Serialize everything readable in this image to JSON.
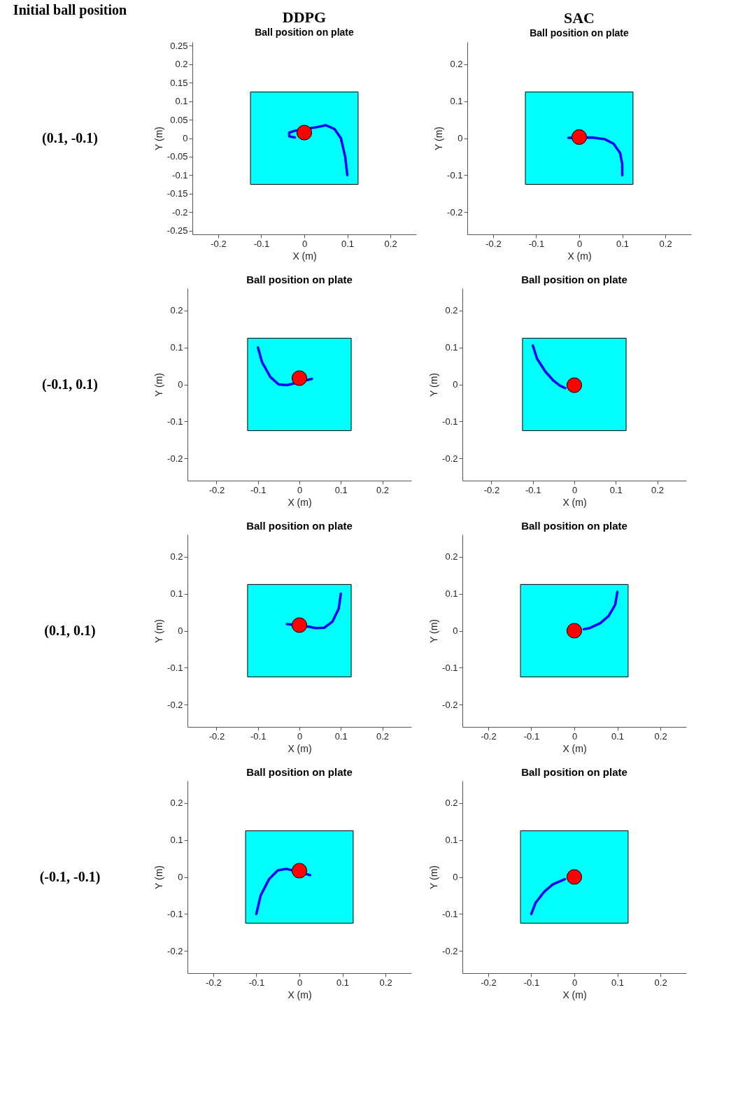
{
  "chart_data": [
    {
      "type": "other",
      "title": "Initial ball position"
    },
    {
      "type": "other",
      "title": "(0.1, -0.1)"
    },
    {
      "type": "line",
      "title": "DDPG",
      "subtitle": "Ball position on plate",
      "xlabel": "X (m)",
      "ylabel": "Y (m)",
      "xlim": [
        -0.26,
        0.26
      ],
      "ylim": [
        -0.26,
        0.26
      ],
      "xticks": [
        -0.2,
        -0.1,
        0,
        0.1,
        0.2
      ],
      "yticks": [
        -0.25,
        -0.2,
        -0.15,
        -0.1,
        -0.05,
        0,
        0.05,
        0.1,
        0.15,
        0.2,
        0.25
      ],
      "series": [
        {
          "type": "line",
          "color": "#0000ff",
          "x": [
            0.1,
            0.095,
            0.085,
            0.07,
            0.05,
            0.03,
            -0.022,
            -0.035,
            -0.035,
            -0.022
          ],
          "values": [
            -0.1,
            -0.05,
            0,
            0.025,
            0.035,
            0.03,
            0.02,
            0.015,
            0.005,
            0.002
          ]
        },
        {
          "type": "scatter",
          "color": "#ff0000",
          "marker": "circle",
          "x": [
            0
          ],
          "values": [
            0.015
          ]
        }
      ]
    },
    {
      "type": "line",
      "title": "SAC",
      "subtitle": "Ball position on plate",
      "xlabel": "X (m)",
      "ylabel": "Y (m)",
      "xlim": [
        -0.26,
        0.26
      ],
      "ylim": [
        -0.26,
        0.26
      ],
      "xticks": [
        -0.2,
        -0.1,
        0,
        0.1,
        0.2
      ],
      "yticks": [
        -0.2,
        -0.1,
        0,
        0.1,
        0.2
      ],
      "series": [
        {
          "type": "line",
          "color": "#0000ff",
          "x": [
            0.1,
            0.1,
            0.095,
            0.08,
            0.06,
            0.03,
            -0.025
          ],
          "values": [
            -0.1,
            -0.07,
            -0.04,
            -0.015,
            -0.003,
            0.002,
            0.001
          ]
        },
        {
          "type": "scatter",
          "color": "#ff0000",
          "marker": "circle",
          "x": [
            0
          ],
          "values": [
            0.003
          ]
        }
      ]
    },
    {
      "type": "other",
      "title": "(-0.1, 0.1)"
    },
    {
      "type": "line",
      "title": "Ball position on plate",
      "xlabel": "X (m)",
      "ylabel": "Y (m)",
      "xlim": [
        -0.27,
        0.27
      ],
      "ylim": [
        -0.26,
        0.26
      ],
      "xticks": [
        -0.2,
        -0.1,
        0,
        0.1,
        0.2
      ],
      "yticks": [
        -0.2,
        -0.1,
        0,
        0.1,
        0.2
      ],
      "series": [
        {
          "type": "line",
          "color": "#0000ff",
          "x": [
            -0.1,
            -0.09,
            -0.07,
            -0.05,
            -0.03,
            0.03
          ],
          "values": [
            0.1,
            0.06,
            0.02,
            0,
            -0.002,
            0.015
          ]
        },
        {
          "type": "scatter",
          "color": "#ff0000",
          "marker": "circle",
          "x": [
            0
          ],
          "values": [
            0.017
          ]
        }
      ]
    },
    {
      "type": "line",
      "title": "Ball position on plate",
      "xlabel": "X (m)",
      "ylabel": "Y (m)",
      "xlim": [
        -0.27,
        0.27
      ],
      "ylim": [
        -0.26,
        0.26
      ],
      "xticks": [
        -0.2,
        -0.1,
        0,
        0.1,
        0.2
      ],
      "yticks": [
        -0.2,
        -0.1,
        0,
        0.1,
        0.2
      ],
      "series": [
        {
          "type": "line",
          "color": "#0000ff",
          "x": [
            -0.1,
            -0.09,
            -0.07,
            -0.05,
            -0.035,
            -0.022
          ],
          "values": [
            0.105,
            0.07,
            0.035,
            0.01,
            -0.003,
            -0.01
          ]
        },
        {
          "type": "scatter",
          "color": "#ff0000",
          "marker": "circle",
          "x": [
            0
          ],
          "values": [
            -0.002
          ]
        }
      ]
    },
    {
      "type": "other",
      "title": "(0.1, 0.1)"
    },
    {
      "type": "line",
      "title": "Ball position on plate",
      "xlabel": "X (m)",
      "ylabel": "Y (m)",
      "xlim": [
        -0.27,
        0.27
      ],
      "ylim": [
        -0.26,
        0.26
      ],
      "xticks": [
        -0.2,
        -0.1,
        0,
        0.1,
        0.2
      ],
      "yticks": [
        -0.2,
        -0.1,
        0,
        0.1,
        0.2
      ],
      "series": [
        {
          "type": "line",
          "color": "#0000ff",
          "x": [
            0.1,
            0.095,
            0.08,
            0.06,
            0.04,
            0.022,
            -0.03
          ],
          "values": [
            0.1,
            0.06,
            0.025,
            0.008,
            0.007,
            0.011,
            0.018
          ]
        },
        {
          "type": "scatter",
          "color": "#ff0000",
          "marker": "circle",
          "x": [
            0
          ],
          "values": [
            0.015
          ]
        }
      ]
    },
    {
      "type": "line",
      "title": "Ball position on plate",
      "xlabel": "X (m)",
      "ylabel": "Y (m)",
      "xlim": [
        -0.26,
        0.26
      ],
      "ylim": [
        -0.26,
        0.26
      ],
      "xticks": [
        -0.2,
        -0.1,
        0,
        0.1,
        0.2
      ],
      "yticks": [
        -0.2,
        -0.1,
        0,
        0.1,
        0.2
      ],
      "series": [
        {
          "type": "line",
          "color": "#0000ff",
          "x": [
            0.1,
            0.095,
            0.08,
            0.06,
            0.035,
            0.022
          ],
          "values": [
            0.105,
            0.07,
            0.04,
            0.02,
            0.007,
            0.004
          ]
        },
        {
          "type": "scatter",
          "color": "#ff0000",
          "marker": "circle",
          "x": [
            0
          ],
          "values": [
            0
          ]
        }
      ]
    },
    {
      "type": "other",
      "title": "(-0.1, -0.1)"
    },
    {
      "type": "line",
      "title": "Ball position on plate",
      "xlabel": "X (m)",
      "ylabel": "Y (m)",
      "xlim": [
        -0.26,
        0.26
      ],
      "ylim": [
        -0.26,
        0.26
      ],
      "xticks": [
        -0.2,
        -0.1,
        0,
        0.1,
        0.2
      ],
      "yticks": [
        -0.2,
        -0.1,
        0,
        0.1,
        0.2
      ],
      "series": [
        {
          "type": "line",
          "color": "#0000ff",
          "x": [
            -0.1,
            -0.09,
            -0.07,
            -0.05,
            -0.03,
            0.025
          ],
          "values": [
            -0.1,
            -0.05,
            -0.005,
            0.018,
            0.022,
            0.005
          ]
        },
        {
          "type": "scatter",
          "color": "#ff0000",
          "marker": "circle",
          "x": [
            0
          ],
          "values": [
            0.017
          ]
        }
      ]
    },
    {
      "type": "line",
      "title": "Ball position on plate",
      "xlabel": "X (m)",
      "ylabel": "Y (m)",
      "xlim": [
        -0.26,
        0.26
      ],
      "ylim": [
        -0.26,
        0.26
      ],
      "xticks": [
        -0.2,
        -0.1,
        0,
        0.1,
        0.2
      ],
      "yticks": [
        -0.2,
        -0.1,
        0,
        0.1,
        0.2
      ],
      "series": [
        {
          "type": "line",
          "color": "#0000ff",
          "x": [
            -0.1,
            -0.09,
            -0.07,
            -0.05,
            -0.022
          ],
          "values": [
            -0.1,
            -0.07,
            -0.04,
            -0.02,
            -0.006
          ]
        },
        {
          "type": "scatter",
          "color": "#ff0000",
          "marker": "circle",
          "x": [
            0
          ],
          "values": [
            0
          ]
        }
      ]
    }
  ]
}
